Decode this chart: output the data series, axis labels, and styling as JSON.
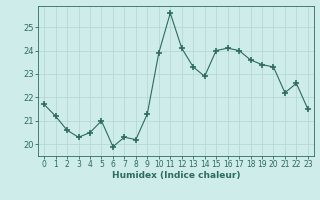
{
  "x": [
    0,
    1,
    2,
    3,
    4,
    5,
    6,
    7,
    8,
    9,
    10,
    11,
    12,
    13,
    14,
    15,
    16,
    17,
    18,
    19,
    20,
    21,
    22,
    23
  ],
  "y": [
    21.7,
    21.2,
    20.6,
    20.3,
    20.5,
    21.0,
    19.9,
    20.3,
    20.2,
    21.3,
    23.9,
    25.6,
    24.1,
    23.3,
    22.9,
    24.0,
    24.1,
    24.0,
    23.6,
    23.4,
    23.3,
    22.2,
    22.6,
    21.5
  ],
  "line_color": "#2d6b5e",
  "marker": "+",
  "marker_size": 4,
  "marker_lw": 1.2,
  "bg_color": "#ceecea",
  "grid_color": "#b8d8d5",
  "xlabel": "Humidex (Indice chaleur)",
  "xlim": [
    -0.5,
    23.5
  ],
  "ylim": [
    19.5,
    25.9
  ],
  "yticks": [
    20,
    21,
    22,
    23,
    24,
    25
  ],
  "xticks": [
    0,
    1,
    2,
    3,
    4,
    5,
    6,
    7,
    8,
    9,
    10,
    11,
    12,
    13,
    14,
    15,
    16,
    17,
    18,
    19,
    20,
    21,
    22,
    23
  ],
  "tick_fontsize": 5.5,
  "xlabel_fontsize": 6.5
}
